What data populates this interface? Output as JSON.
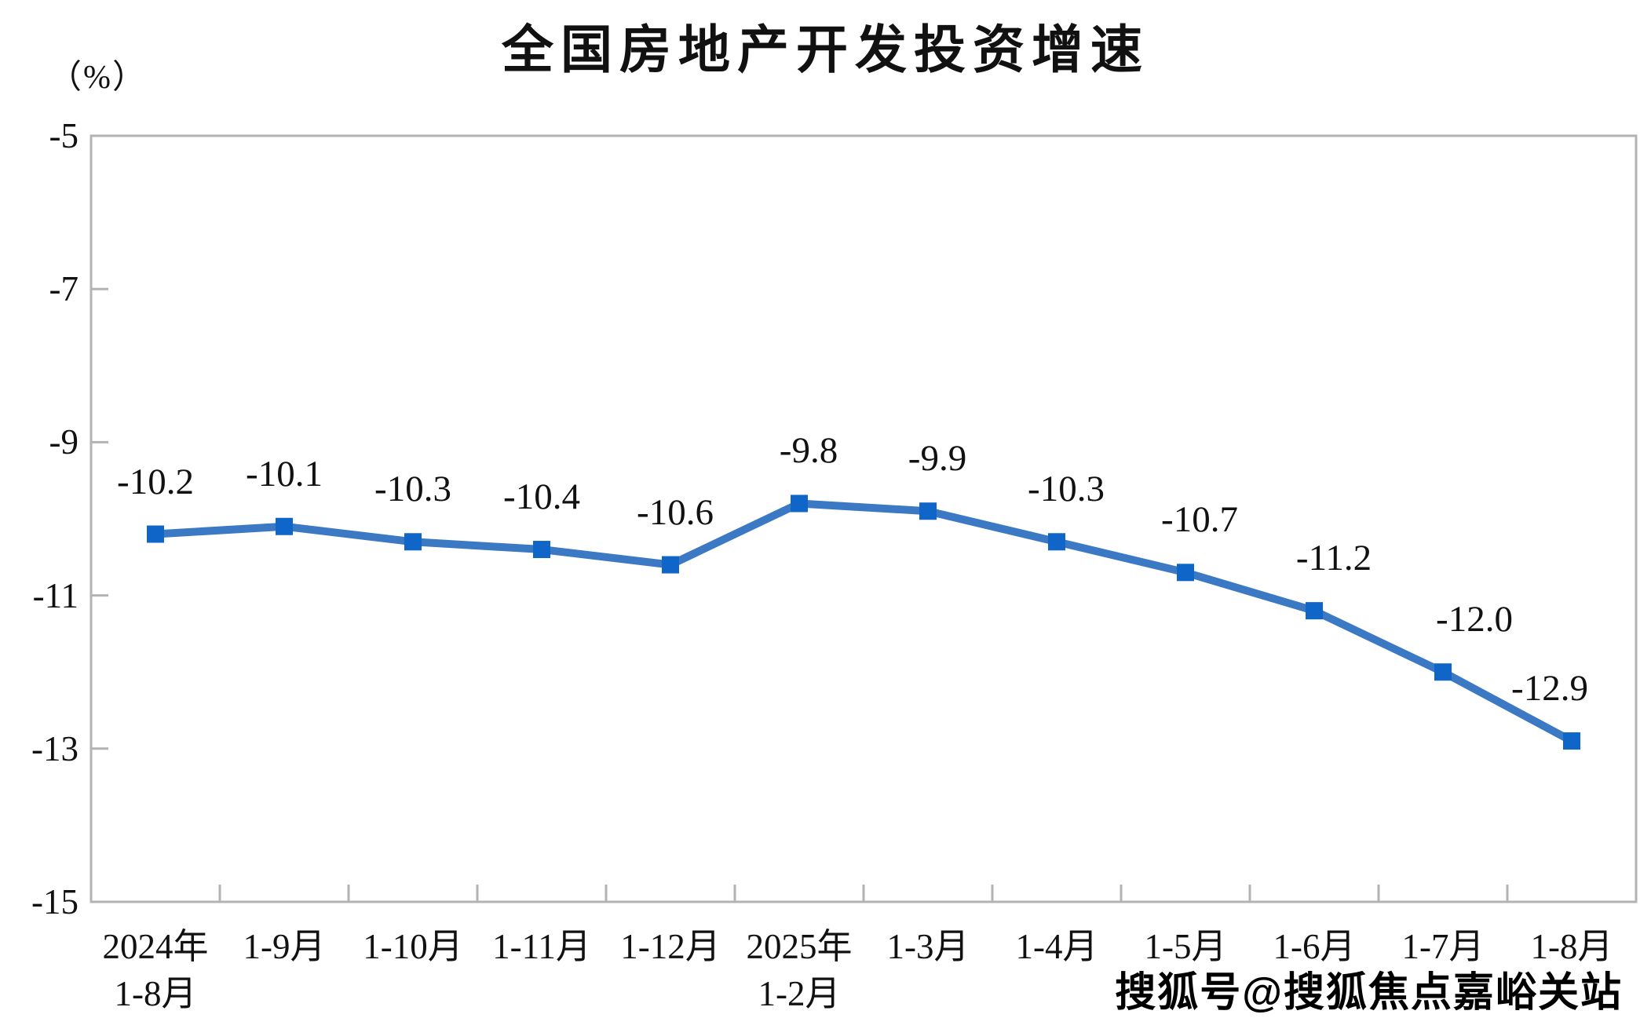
{
  "title": "全国房地产开发投资增速",
  "unit_label": "（%）",
  "watermark": "搜狐号@搜狐焦点嘉峪关站",
  "chart_data": {
    "type": "line",
    "title": "全国房地产开发投资增速",
    "ylabel": "（%）",
    "categories": [
      [
        "2024年",
        "1-8月"
      ],
      [
        "1-9月"
      ],
      [
        "1-10月"
      ],
      [
        "1-11月"
      ],
      [
        "1-12月"
      ],
      [
        "2025年",
        "1-2月"
      ],
      [
        "1-3月"
      ],
      [
        "1-4月"
      ],
      [
        "1-5月"
      ],
      [
        "1-6月"
      ],
      [
        "1-7月"
      ],
      [
        "1-8月"
      ]
    ],
    "series": [
      {
        "name": "全国房地产开发投资增速",
        "values": [
          -10.2,
          -10.1,
          -10.3,
          -10.4,
          -10.6,
          -9.8,
          -9.9,
          -10.3,
          -10.7,
          -11.2,
          -12.0,
          -12.9
        ]
      }
    ],
    "data_labels": [
      "-10.2",
      "-10.1",
      "-10.3",
      "-10.4",
      "-10.6",
      "-9.8",
      "-9.9",
      "-10.3",
      "-10.7",
      "-11.2",
      "-12.0",
      "-12.9"
    ],
    "label_dx": [
      0,
      0,
      0,
      0,
      6,
      12,
      12,
      12,
      18,
      25,
      40,
      -28
    ],
    "y_ticks": [
      -5,
      -7,
      -9,
      -11,
      -13,
      -15
    ],
    "ylim": [
      -15,
      -5
    ],
    "grid": false,
    "legend": false,
    "marker": "square",
    "line_color": "#3B79C4",
    "marker_color": "#1066C8",
    "axis_color": "#b3b3b3"
  }
}
